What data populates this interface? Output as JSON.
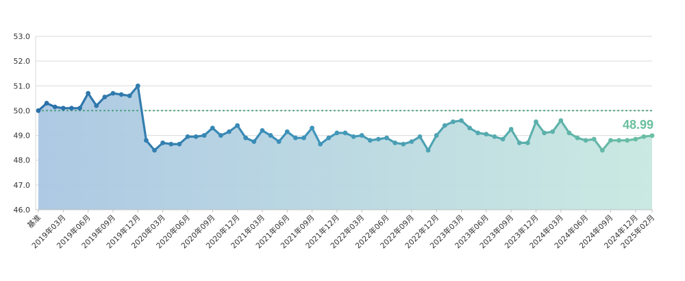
{
  "chart_data": {
    "type": "area",
    "title": "",
    "xlabel": "",
    "ylabel": "",
    "ylim": [
      46,
      53
    ],
    "y_ticks": [
      "46.0",
      "47.0",
      "48.0",
      "49.0",
      "50.0",
      "51.0",
      "52.0",
      "53.0"
    ],
    "reference_value": 50.0,
    "last_value_label": "48.99",
    "x_tick_labels": [
      "基准",
      "2019年03月",
      "2019年06月",
      "2019年09月",
      "2019年12月",
      "2020年03月",
      "2020年06月",
      "2020年09月",
      "2020年12月",
      "2021年03月",
      "2021年06月",
      "2021年09月",
      "2021年12月",
      "2022年03月",
      "2022年06月",
      "2022年09月",
      "2022年12月",
      "2023年03月",
      "2023年06月",
      "2023年09月",
      "2023年12月",
      "2024年03月",
      "2024年06月",
      "2024年09月",
      "2024年12月",
      "2025年02月"
    ],
    "x_tick_indices": [
      0,
      3,
      6,
      9,
      12,
      15,
      18,
      21,
      24,
      27,
      30,
      33,
      36,
      39,
      42,
      45,
      48,
      51,
      54,
      57,
      60,
      63,
      66,
      69,
      72,
      74
    ],
    "x": [
      "基准",
      "2019年01月",
      "2019年02月",
      "2019年03月",
      "2019年04月",
      "2019年05月",
      "2019年06月",
      "2019年07月",
      "2019年08月",
      "2019年09月",
      "2019年10月",
      "2019年11月",
      "2019年12月",
      "2020年01月",
      "2020年02月",
      "2020年03月",
      "2020年04月",
      "2020年05月",
      "2020年06月",
      "2020年07月",
      "2020年08月",
      "2020年09月",
      "2020年10月",
      "2020年11月",
      "2020年12月",
      "2021年01月",
      "2021年02月",
      "2021年03月",
      "2021年04月",
      "2021年05月",
      "2021年06月",
      "2021年07月",
      "2021年08月",
      "2021年09月",
      "2021年10月",
      "2021年11月",
      "2021年12月",
      "2022年01月",
      "2022年02月",
      "2022年03月",
      "2022年04月",
      "2022年05月",
      "2022年06月",
      "2022年07月",
      "2022年08月",
      "2022年09月",
      "2022年10月",
      "2022年11月",
      "2022年12月",
      "2023年01月",
      "2023年02月",
      "2023年03月",
      "2023年04月",
      "2023年05月",
      "2023年06月",
      "2023年07月",
      "2023年08月",
      "2023年09月",
      "2023年10月",
      "2023年11月",
      "2023年12月",
      "2024年01月",
      "2024年02月",
      "2024年03月",
      "2024年04月",
      "2024年05月",
      "2024年06月",
      "2024年07月",
      "2024年08月",
      "2024年09月",
      "2024年10月",
      "2024年11月",
      "2024年12月",
      "2025年01月",
      "2025年02月"
    ],
    "series": [
      {
        "values": [
          50.0,
          50.3,
          50.15,
          50.1,
          50.1,
          50.1,
          50.7,
          50.2,
          50.55,
          50.7,
          50.65,
          50.6,
          51.0,
          48.8,
          48.4,
          48.7,
          48.65,
          48.65,
          48.95,
          48.95,
          49.0,
          49.3,
          49.0,
          49.15,
          49.4,
          48.9,
          48.75,
          49.2,
          49.0,
          48.75,
          49.15,
          48.9,
          48.9,
          49.3,
          48.65,
          48.9,
          49.1,
          49.1,
          48.95,
          49.0,
          48.8,
          48.85,
          48.9,
          48.7,
          48.65,
          48.75,
          48.95,
          48.4,
          49.0,
          49.4,
          49.55,
          49.6,
          49.3,
          49.1,
          49.05,
          48.95,
          48.85,
          49.25,
          48.7,
          48.7,
          49.55,
          49.1,
          49.15,
          49.6,
          49.1,
          48.9,
          48.8,
          48.85,
          48.4,
          48.8,
          48.8,
          48.8,
          48.85,
          48.95,
          48.99
        ]
      }
    ],
    "colors": {
      "line_start": "#2a6fa8",
      "line_end": "#6bbfa4",
      "fill_start": "#a9c6e2",
      "fill_end": "#c8e8e0",
      "reference": "#3f9a72",
      "last_label": "#6abf9d"
    },
    "grid": true
  }
}
